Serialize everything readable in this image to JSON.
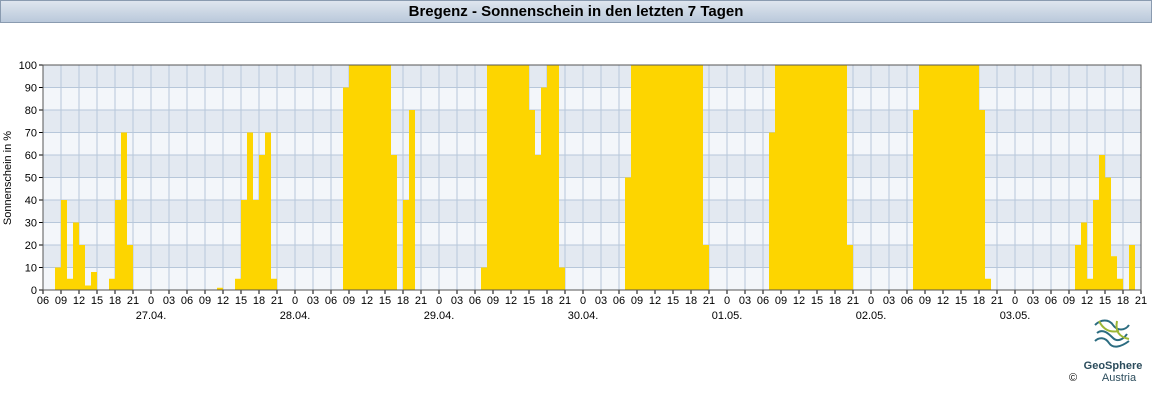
{
  "chart_data": {
    "type": "bar",
    "title": "Bregenz - Sonnenschein in den letzten 7 Tagen",
    "y_label": "Sonnenschein in %",
    "color": "#fdd500",
    "grid": true,
    "logo": {
      "line1": "GeoSphere",
      "line2": "Austria",
      "copyright": "©"
    },
    "xlim": [
      0,
      183
    ],
    "ylim": [
      0,
      100
    ],
    "yticks": [
      0,
      10,
      20,
      30,
      40,
      50,
      60,
      70,
      80,
      90,
      100
    ],
    "xticks": [
      {
        "value": 0,
        "label": "06"
      },
      {
        "value": 3,
        "label": "09"
      },
      {
        "value": 6,
        "label": "12"
      },
      {
        "value": 9,
        "label": "15"
      },
      {
        "value": 12,
        "label": "18"
      },
      {
        "value": 15,
        "label": "21"
      },
      {
        "value": 18,
        "label": "0"
      },
      {
        "value": 21,
        "label": "03"
      },
      {
        "value": 24,
        "label": "06"
      },
      {
        "value": 27,
        "label": "09"
      },
      {
        "value": 30,
        "label": "12"
      },
      {
        "value": 33,
        "label": "15"
      },
      {
        "value": 36,
        "label": "18"
      },
      {
        "value": 39,
        "label": "21"
      },
      {
        "value": 42,
        "label": "0"
      },
      {
        "value": 45,
        "label": "03"
      },
      {
        "value": 48,
        "label": "06"
      },
      {
        "value": 51,
        "label": "09"
      },
      {
        "value": 54,
        "label": "12"
      },
      {
        "value": 57,
        "label": "15"
      },
      {
        "value": 60,
        "label": "18"
      },
      {
        "value": 63,
        "label": "21"
      },
      {
        "value": 66,
        "label": "0"
      },
      {
        "value": 69,
        "label": "03"
      },
      {
        "value": 72,
        "label": "06"
      },
      {
        "value": 75,
        "label": "09"
      },
      {
        "value": 78,
        "label": "12"
      },
      {
        "value": 81,
        "label": "15"
      },
      {
        "value": 84,
        "label": "18"
      },
      {
        "value": 87,
        "label": "21"
      },
      {
        "value": 90,
        "label": "0"
      },
      {
        "value": 93,
        "label": "03"
      },
      {
        "value": 96,
        "label": "06"
      },
      {
        "value": 99,
        "label": "09"
      },
      {
        "value": 102,
        "label": "12"
      },
      {
        "value": 105,
        "label": "15"
      },
      {
        "value": 108,
        "label": "18"
      },
      {
        "value": 111,
        "label": "21"
      },
      {
        "value": 114,
        "label": "0"
      },
      {
        "value": 117,
        "label": "03"
      },
      {
        "value": 120,
        "label": "06"
      },
      {
        "value": 123,
        "label": "09"
      },
      {
        "value": 126,
        "label": "12"
      },
      {
        "value": 129,
        "label": "15"
      },
      {
        "value": 132,
        "label": "18"
      },
      {
        "value": 135,
        "label": "21"
      },
      {
        "value": 138,
        "label": "0"
      },
      {
        "value": 141,
        "label": "03"
      },
      {
        "value": 144,
        "label": "06"
      },
      {
        "value": 147,
        "label": "09"
      },
      {
        "value": 150,
        "label": "12"
      },
      {
        "value": 153,
        "label": "15"
      },
      {
        "value": 156,
        "label": "18"
      },
      {
        "value": 159,
        "label": "21"
      },
      {
        "value": 162,
        "label": "0"
      },
      {
        "value": 165,
        "label": "03"
      },
      {
        "value": 168,
        "label": "06"
      },
      {
        "value": 171,
        "label": "09"
      },
      {
        "value": 174,
        "label": "12"
      },
      {
        "value": 177,
        "label": "15"
      },
      {
        "value": 180,
        "label": "18"
      },
      {
        "value": 183,
        "label": "21"
      }
    ],
    "date_labels": [
      {
        "value": 18,
        "label": "27.04."
      },
      {
        "value": 42,
        "label": "28.04."
      },
      {
        "value": 66,
        "label": "29.04."
      },
      {
        "value": 90,
        "label": "30.04."
      },
      {
        "value": 114,
        "label": "01.05."
      },
      {
        "value": 138,
        "label": "02.05."
      },
      {
        "value": 162,
        "label": "03.05."
      }
    ],
    "x": [
      0,
      1,
      2,
      3,
      4,
      5,
      6,
      7,
      8,
      9,
      10,
      11,
      12,
      13,
      14,
      15,
      16,
      17,
      18,
      19,
      20,
      21,
      22,
      23,
      24,
      25,
      26,
      27,
      28,
      29,
      30,
      31,
      32,
      33,
      34,
      35,
      36,
      37,
      38,
      39,
      40,
      41,
      42,
      43,
      44,
      45,
      46,
      47,
      48,
      49,
      50,
      51,
      52,
      53,
      54,
      55,
      56,
      57,
      58,
      59,
      60,
      61,
      62,
      63,
      64,
      65,
      66,
      67,
      68,
      69,
      70,
      71,
      72,
      73,
      74,
      75,
      76,
      77,
      78,
      79,
      80,
      81,
      82,
      83,
      84,
      85,
      86,
      87,
      88,
      89,
      90,
      91,
      92,
      93,
      94,
      95,
      96,
      97,
      98,
      99,
      100,
      101,
      102,
      103,
      104,
      105,
      106,
      107,
      108,
      109,
      110,
      111,
      112,
      113,
      114,
      115,
      116,
      117,
      118,
      119,
      120,
      121,
      122,
      123,
      124,
      125,
      126,
      127,
      128,
      129,
      130,
      131,
      132,
      133,
      134,
      135,
      136,
      137,
      138,
      139,
      140,
      141,
      142,
      143,
      144,
      145,
      146,
      147,
      148,
      149,
      150,
      151,
      152,
      153,
      154,
      155,
      156,
      157,
      158,
      159,
      160,
      161,
      162,
      163,
      164,
      165,
      166,
      167,
      168,
      169,
      170,
      171,
      172,
      173,
      174,
      175,
      176,
      177,
      178,
      179,
      180,
      181,
      182
    ],
    "values": [
      0,
      0,
      10,
      40,
      5,
      30,
      20,
      2,
      8,
      0,
      0,
      5,
      40,
      70,
      20,
      0,
      0,
      0,
      0,
      0,
      0,
      0,
      0,
      0,
      0,
      0,
      0,
      0,
      0,
      1,
      0,
      0,
      5,
      40,
      70,
      40,
      60,
      70,
      5,
      0,
      0,
      0,
      0,
      0,
      0,
      0,
      0,
      0,
      0,
      0,
      90,
      100,
      100,
      100,
      100,
      100,
      100,
      100,
      60,
      0,
      40,
      80,
      0,
      0,
      0,
      0,
      0,
      0,
      0,
      0,
      0,
      0,
      0,
      10,
      100,
      100,
      100,
      100,
      100,
      100,
      100,
      80,
      60,
      90,
      100,
      100,
      10,
      0,
      0,
      0,
      0,
      0,
      0,
      0,
      0,
      0,
      0,
      50,
      100,
      100,
      100,
      100,
      100,
      100,
      100,
      100,
      100,
      100,
      100,
      100,
      20,
      0,
      0,
      0,
      0,
      0,
      0,
      0,
      0,
      0,
      0,
      70,
      100,
      100,
      100,
      100,
      100,
      100,
      100,
      100,
      100,
      100,
      100,
      100,
      20,
      0,
      0,
      0,
      0,
      0,
      0,
      0,
      0,
      0,
      0,
      80,
      100,
      100,
      100,
      100,
      100,
      100,
      100,
      100,
      100,
      100,
      80,
      5,
      0,
      0,
      0,
      0,
      0,
      0,
      0,
      0,
      0,
      0,
      0,
      0,
      0,
      0,
      20,
      30,
      5,
      40,
      60,
      50,
      15,
      5,
      0,
      20,
      0
    ]
  }
}
